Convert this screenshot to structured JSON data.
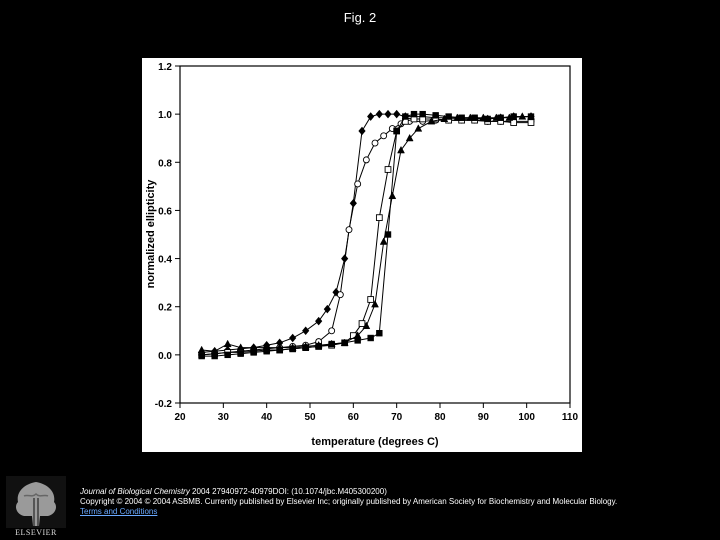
{
  "figure": {
    "title": "Fig. 2"
  },
  "footer": {
    "journal": "Journal of Biological Chemistry",
    "citation": " 2004 27940972-40979DOI: (10.1074/jbc.M405300200)",
    "copyright": "Copyright © 2004 © 2004 ASBMB. Currently published by Elsevier Inc; originally published by American Society for Biochemistry and Molecular Biology.",
    "link_text": "Terms and Conditions"
  },
  "logo": {
    "text": "ELSEVIER"
  },
  "chart_data": {
    "type": "line",
    "xlabel": "temperature (degrees C)",
    "ylabel": "normalized ellipticity",
    "xlim": [
      20,
      110
    ],
    "ylim": [
      -0.2,
      1.2
    ],
    "xticks": [
      20,
      30,
      40,
      50,
      60,
      70,
      80,
      90,
      100,
      110
    ],
    "yticks": [
      -0.2,
      0.0,
      0.2,
      0.4,
      0.6,
      0.8,
      1.0,
      1.2
    ],
    "ytick_labels": [
      "-0.2",
      "0.0",
      "0.2",
      "0.4",
      "0.6",
      "0.8",
      "1.0",
      "1.2"
    ],
    "grid": false,
    "series": [
      {
        "marker": "filled-diamond",
        "x": [
          25,
          28,
          31,
          34,
          37,
          40,
          43,
          46,
          49,
          52,
          54,
          56,
          58,
          60,
          62,
          64,
          66,
          68,
          70,
          72,
          74,
          76,
          79,
          82,
          85,
          88,
          91,
          94,
          97,
          101
        ],
        "y": [
          0.01,
          0.015,
          0.02,
          0.025,
          0.03,
          0.04,
          0.05,
          0.07,
          0.1,
          0.14,
          0.19,
          0.26,
          0.4,
          0.63,
          0.93,
          0.99,
          1.0,
          1.0,
          1.0,
          0.99,
          0.99,
          0.99,
          0.985,
          0.985,
          0.98,
          0.98,
          0.98,
          0.985,
          0.99,
          0.99
        ]
      },
      {
        "marker": "open-circle",
        "x": [
          25,
          28,
          31,
          34,
          37,
          40,
          43,
          46,
          49,
          52,
          55,
          57,
          59,
          61,
          63,
          65,
          67,
          69,
          71,
          73,
          76,
          79,
          82,
          85,
          88,
          91,
          94,
          97,
          101
        ],
        "y": [
          0.0,
          0.005,
          0.01,
          0.015,
          0.02,
          0.025,
          0.03,
          0.035,
          0.04,
          0.055,
          0.1,
          0.25,
          0.52,
          0.71,
          0.81,
          0.88,
          0.91,
          0.94,
          0.96,
          0.97,
          0.97,
          0.975,
          0.975,
          0.975,
          0.975,
          0.97,
          0.97,
          0.97,
          0.97
        ]
      },
      {
        "marker": "open-square",
        "x": [
          25,
          28,
          31,
          34,
          37,
          40,
          43,
          46,
          49,
          52,
          55,
          58,
          60,
          62,
          64,
          66,
          68,
          70,
          72,
          74,
          76,
          79,
          82,
          85,
          88,
          91,
          94,
          97,
          101
        ],
        "y": [
          0.0,
          0.005,
          0.01,
          0.01,
          0.015,
          0.02,
          0.02,
          0.025,
          0.03,
          0.035,
          0.04,
          0.05,
          0.08,
          0.13,
          0.23,
          0.57,
          0.77,
          0.93,
          0.97,
          0.98,
          0.98,
          0.98,
          0.975,
          0.975,
          0.975,
          0.97,
          0.97,
          0.965,
          0.965
        ]
      },
      {
        "marker": "filled-triangle",
        "x": [
          25,
          28,
          31,
          34,
          37,
          40,
          43,
          46,
          49,
          52,
          55,
          58,
          61,
          63,
          65,
          67,
          69,
          71,
          73,
          75,
          78,
          81,
          84,
          87,
          90,
          93,
          96,
          99,
          101
        ],
        "y": [
          0.02,
          0.015,
          0.045,
          0.03,
          0.03,
          0.03,
          0.03,
          0.03,
          0.035,
          0.04,
          0.045,
          0.05,
          0.08,
          0.12,
          0.21,
          0.47,
          0.66,
          0.85,
          0.9,
          0.94,
          0.97,
          0.98,
          0.985,
          0.985,
          0.985,
          0.985,
          0.985,
          0.99,
          0.99
        ]
      },
      {
        "marker": "filled-square",
        "x": [
          25,
          28,
          31,
          34,
          37,
          40,
          43,
          46,
          49,
          52,
          55,
          58,
          61,
          64,
          66,
          68,
          70,
          72,
          74,
          76,
          79,
          82,
          85,
          88,
          91,
          94,
          97,
          101
        ],
        "y": [
          -0.005,
          -0.005,
          0.0,
          0.005,
          0.01,
          0.015,
          0.02,
          0.025,
          0.03,
          0.035,
          0.045,
          0.05,
          0.06,
          0.07,
          0.09,
          0.5,
          0.93,
          0.99,
          1.0,
          1.0,
          0.995,
          0.99,
          0.985,
          0.985,
          0.98,
          0.985,
          0.99,
          0.99
        ]
      }
    ]
  }
}
